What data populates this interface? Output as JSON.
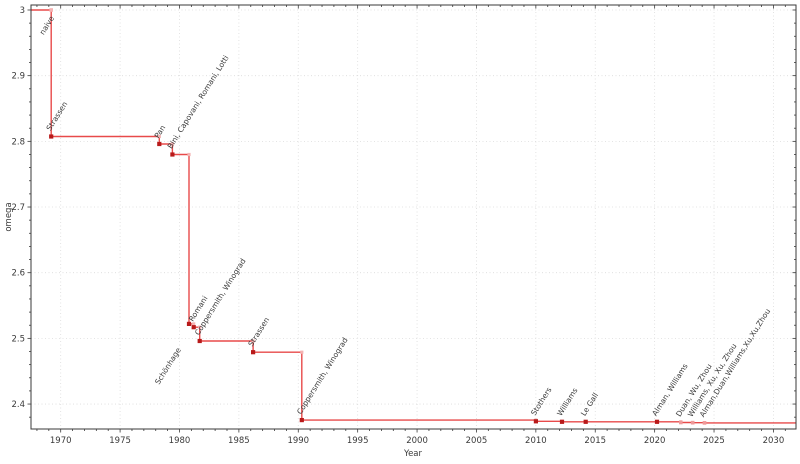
{
  "chart_data": {
    "type": "line",
    "style": "step-post",
    "xlabel": "Year",
    "ylabel": "omega",
    "xlim": [
      1967.5,
      2031.9
    ],
    "ylim": [
      2.362,
      3.0076
    ],
    "x_major_ticks": [
      1970,
      1975,
      1980,
      1985,
      1990,
      1995,
      2000,
      2005,
      2010,
      2015,
      2020,
      2025,
      2030
    ],
    "x_minor_step": 1,
    "y_major_ticks": [
      {
        "value": 3.0,
        "label": "3"
      },
      {
        "value": 2.9,
        "label": "2.9"
      },
      {
        "value": 2.8,
        "label": "2.8"
      },
      {
        "value": 2.7,
        "label": "2.7"
      },
      {
        "value": 2.6,
        "label": "2.6"
      },
      {
        "value": 2.5,
        "label": "2.5"
      },
      {
        "value": 2.4,
        "label": "2.4"
      }
    ],
    "y_minor_step": 0.02,
    "grid": "dotted-major",
    "legend": "none",
    "points": [
      {
        "label": "naive",
        "year": 1969.2,
        "omega": 3.0,
        "marker": "light",
        "label_color": "black",
        "label_side": "dl",
        "label_gap": 5
      },
      {
        "label": "Strassen",
        "year": 1969.2,
        "omega": 2.8074,
        "marker": "dark",
        "label_color": "black",
        "label_side": "ur",
        "label_gap": 4
      },
      {
        "label": "Pan",
        "year": 1978.3,
        "omega": 2.796,
        "marker": "dark",
        "label_color": "black",
        "label_side": "ur",
        "label_gap": 4
      },
      {
        "label": "Bini, Capovani, Romani, Lotti",
        "year": 1979.4,
        "omega": 2.78,
        "marker": "dark",
        "label_color": "black",
        "label_side": "ur",
        "label_gap": 4
      },
      {
        "label": "Schönhage",
        "year": 1980.8,
        "omega": 2.522,
        "marker": "dark",
        "label_color": "black",
        "label_side": "dl",
        "label_gap": 26
      },
      {
        "label": "Romani",
        "year": 1981.2,
        "omega": 2.517,
        "marker": "dark",
        "label_color": "black",
        "label_side": "ur",
        "label_gap": 4
      },
      {
        "label": "Coppersmith, Winograd",
        "year": 1981.7,
        "omega": 2.496,
        "marker": "dark",
        "label_color": "black",
        "label_side": "ur",
        "label_gap": 4
      },
      {
        "label": "Strassen",
        "year": 1986.2,
        "omega": 2.479,
        "marker": "dark",
        "label_color": "black",
        "label_side": "ur",
        "label_gap": 4
      },
      {
        "label": "Coppersmith, Winograd",
        "year": 1990.3,
        "omega": 2.3755,
        "marker": "dark",
        "label_color": "black",
        "label_side": "ur",
        "label_gap": 4
      },
      {
        "label": "Stothers",
        "year": 2010.0,
        "omega": 2.3737,
        "marker": "dark",
        "label_color": "black",
        "label_side": "ur",
        "label_gap": 4
      },
      {
        "label": "Williams",
        "year": 2012.2,
        "omega": 2.3729,
        "marker": "dark",
        "label_color": "black",
        "label_side": "ur",
        "label_gap": 4
      },
      {
        "label": "Le Gall",
        "year": 2014.2,
        "omega": 2.3729,
        "marker": "dark",
        "label_color": "black",
        "label_side": "ur",
        "label_gap": 4
      },
      {
        "label": "Alman, Williams",
        "year": 2020.2,
        "omega": 2.3729,
        "marker": "dark",
        "label_color": "black",
        "label_side": "ur",
        "label_gap": 4
      },
      {
        "label": "Duan, Wu, Zhou",
        "year": 2022.2,
        "omega": 2.3719,
        "marker": "mid",
        "label_color": "gray",
        "label_side": "ur",
        "label_gap": 4
      },
      {
        "label": "Williams, Xu, Xu, Zhou",
        "year": 2023.2,
        "omega": 2.3716,
        "marker": "mid",
        "label_color": "gray",
        "label_side": "ur",
        "label_gap": 4
      },
      {
        "label": "Alman,Duan,Williams,Xu,Xu,Zhou",
        "year": 2024.2,
        "omega": 2.3713,
        "marker": "mid",
        "label_color": "gray",
        "label_side": "ur",
        "label_gap": 4
      }
    ],
    "colors": {
      "line": "#e84a4a",
      "marker_dark": "#b81a1a",
      "marker_mid": "#ef9a9a",
      "marker_light": "#f4b3b3",
      "label_black": "#2e2e2e",
      "label_gray": "#a6a6a6",
      "grid": "#dcdcdc",
      "spine": "#3a3a3a",
      "background": "#ffffff"
    }
  }
}
